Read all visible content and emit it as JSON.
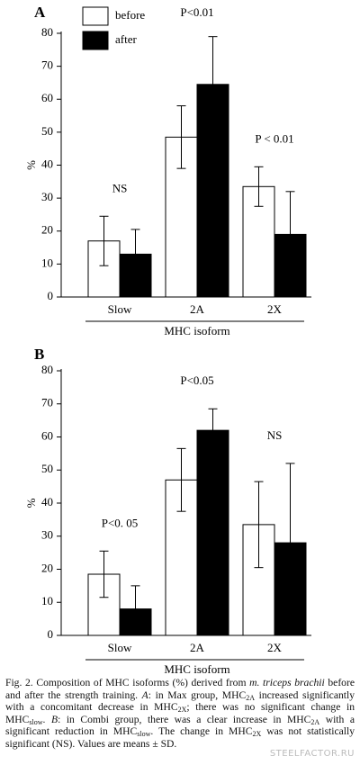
{
  "chart_data": [
    {
      "type": "bar",
      "panel": "A",
      "ylabel": "%",
      "xlabel": "MHC isoform",
      "categories": [
        "Slow",
        "2A",
        "2X"
      ],
      "series": [
        {
          "name": "before",
          "color": "#ffffff",
          "values": [
            17,
            48.5,
            33.5
          ],
          "errors": [
            7.5,
            9.5,
            6
          ]
        },
        {
          "name": "after",
          "color": "#000000",
          "values": [
            13,
            64.5,
            19
          ],
          "errors": [
            7.5,
            14.5,
            13
          ]
        }
      ],
      "annotations": [
        "NS",
        "P<0.01",
        "P < 0.01"
      ],
      "ylim": [
        0,
        80
      ],
      "yticks": [
        0,
        10,
        20,
        30,
        40,
        50,
        60,
        70,
        80
      ],
      "legend": true
    },
    {
      "type": "bar",
      "panel": "B",
      "ylabel": "%",
      "xlabel": "MHC isoform",
      "categories": [
        "Slow",
        "2A",
        "2X"
      ],
      "series": [
        {
          "color": "#ffffff",
          "values": [
            18.5,
            47,
            33.5
          ],
          "errors": [
            7,
            9.5,
            13
          ]
        },
        {
          "color": "#000000",
          "values": [
            8,
            62,
            28
          ],
          "errors": [
            7,
            6.5,
            24
          ]
        }
      ],
      "annotations": [
        "P<0.  05",
        "P<0.05",
        "NS"
      ],
      "ylim": [
        0,
        80
      ],
      "yticks": [
        0,
        10,
        20,
        30,
        40,
        50,
        60,
        70,
        80
      ],
      "legend": false
    }
  ],
  "caption": [
    "Fig. 2. Composition of MHC isoforms (%) derived from ",
    "m. triceps brachii",
    " before and after the strength training. ",
    "A",
    ": in Max group, MHC",
    "2A",
    " increased significantly with a concomitant decrease in MHC",
    "2X",
    "; there was no significant change in MHC",
    "slow",
    ". ",
    "B",
    ": in Combi group, there was a clear increase in MHC",
    "2A",
    " with a significant reduction in MHC",
    "slow",
    ". The change in MHC",
    "2X",
    " was not statistically significant (NS). Values are means ± SD."
  ],
  "watermark": "STEELFACTOR.RU"
}
